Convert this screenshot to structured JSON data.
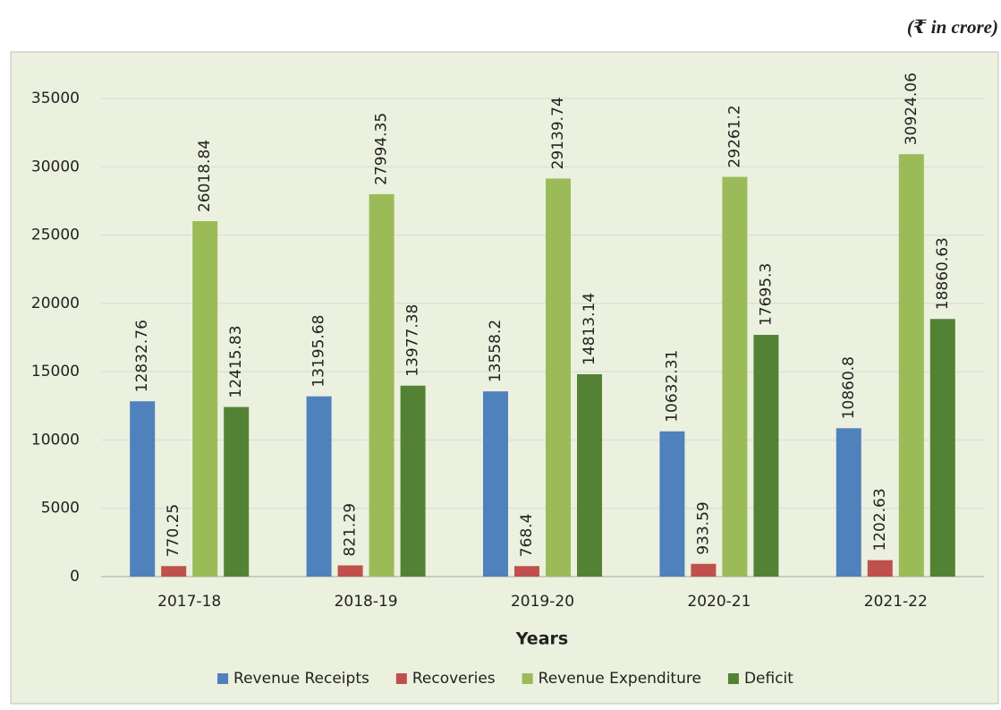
{
  "note": "(₹ in crore)",
  "chart_data": {
    "type": "bar",
    "x_label": "Years",
    "categories": [
      "2017-18",
      "2018-19",
      "2019-20",
      "2020-21",
      "2021-22"
    ],
    "series": [
      {
        "name": "Revenue Receipts",
        "color": "#4f81bd",
        "values": [
          12832.76,
          13195.68,
          13558.2,
          10632.31,
          10860.8
        ]
      },
      {
        "name": "Recoveries",
        "color": "#c0504d",
        "values": [
          770.25,
          821.29,
          768.4,
          933.59,
          1202.63
        ]
      },
      {
        "name": "Revenue Expenditure",
        "color": "#9bbb59",
        "values": [
          26018.84,
          27994.35,
          29139.74,
          29261.2,
          30924.06
        ]
      },
      {
        "name": "Deficit",
        "color": "#548235",
        "values": [
          12415.83,
          13977.38,
          14813.14,
          17695.3,
          18860.63
        ]
      }
    ],
    "ylim": [
      0,
      35000
    ],
    "yticks": [
      0,
      5000,
      10000,
      15000,
      20000,
      25000,
      30000,
      35000
    ],
    "grid": true,
    "legend": "bottom"
  }
}
